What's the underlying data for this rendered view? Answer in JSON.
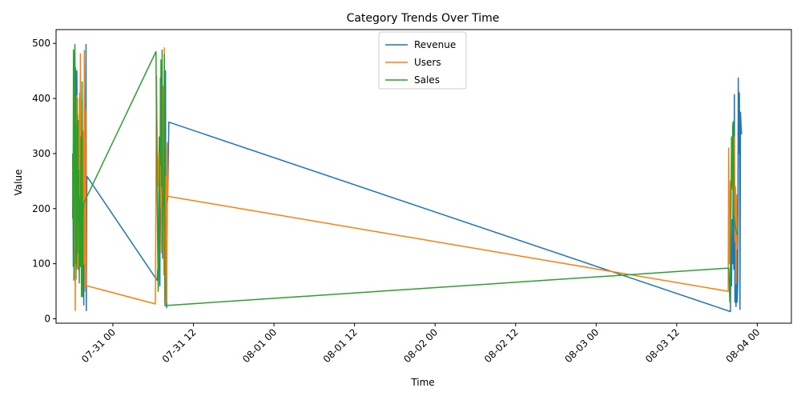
{
  "chart_data": {
    "type": "line",
    "title": "Category Trends Over Time",
    "xlabel": "Time",
    "ylabel": "Value",
    "ylim": [
      -8,
      525
    ],
    "xlim": [
      "2024-07-30 15:32",
      "2024-08-04 05:05"
    ],
    "grid": false,
    "legend_position": "top-center",
    "x_ticks": [
      {
        "t": "2024-07-31 00:00",
        "label": "07-31 00"
      },
      {
        "t": "2024-07-31 12:00",
        "label": "07-31 12"
      },
      {
        "t": "2024-08-01 00:00",
        "label": "08-01 00"
      },
      {
        "t": "2024-08-01 12:00",
        "label": "08-01 12"
      },
      {
        "t": "2024-08-02 00:00",
        "label": "08-02 00"
      },
      {
        "t": "2024-08-02 12:00",
        "label": "08-02 12"
      },
      {
        "t": "2024-08-03 00:00",
        "label": "08-03 00"
      },
      {
        "t": "2024-08-03 12:00",
        "label": "08-03 12"
      },
      {
        "t": "2024-08-04 00:00",
        "label": "08-04 00"
      }
    ],
    "y_ticks": [
      0,
      100,
      200,
      300,
      400,
      500
    ],
    "series": [
      {
        "name": "Revenue",
        "color": "#1f77b4",
        "points": [
          [
            "2024-07-30 18:00",
            182
          ],
          [
            "2024-07-30 18:03",
            272
          ],
          [
            "2024-07-30 18:06",
            95
          ],
          [
            "2024-07-30 18:09",
            350
          ],
          [
            "2024-07-30 18:12",
            466
          ],
          [
            "2024-07-30 18:15",
            110
          ],
          [
            "2024-07-30 18:18",
            460
          ],
          [
            "2024-07-30 18:21",
            95
          ],
          [
            "2024-07-30 18:24",
            180
          ],
          [
            "2024-07-30 18:27",
            455
          ],
          [
            "2024-07-30 18:30",
            72
          ],
          [
            "2024-07-30 18:34",
            300
          ],
          [
            "2024-07-30 18:38",
            450
          ],
          [
            "2024-07-30 18:42",
            120
          ],
          [
            "2024-07-30 18:46",
            330
          ],
          [
            "2024-07-30 18:50",
            90
          ],
          [
            "2024-07-30 18:55",
            280
          ],
          [
            "2024-07-30 19:00",
            120
          ],
          [
            "2024-07-30 19:05",
            410
          ],
          [
            "2024-07-30 19:10",
            95
          ],
          [
            "2024-07-30 19:15",
            330
          ],
          [
            "2024-07-30 19:20",
            150
          ],
          [
            "2024-07-30 19:25",
            400
          ],
          [
            "2024-07-30 19:30",
            60
          ],
          [
            "2024-07-30 19:35",
            330
          ],
          [
            "2024-07-30 19:40",
            25
          ],
          [
            "2024-07-30 19:45",
            380
          ],
          [
            "2024-07-30 19:50",
            80
          ],
          [
            "2024-07-30 19:55",
            260
          ],
          [
            "2024-07-30 20:00",
            498
          ],
          [
            "2024-07-30 20:03",
            15
          ],
          [
            "2024-07-30 20:06",
            250
          ],
          [
            "2024-07-30 20:10",
            258
          ],
          [
            "2024-07-31 06:35",
            70
          ],
          [
            "2024-07-31 06:45",
            100
          ],
          [
            "2024-07-31 06:55",
            330
          ],
          [
            "2024-07-31 07:00",
            60
          ],
          [
            "2024-07-31 07:05",
            437
          ],
          [
            "2024-07-31 07:10",
            240
          ],
          [
            "2024-07-31 07:15",
            120
          ],
          [
            "2024-07-31 07:20",
            160
          ],
          [
            "2024-07-31 07:25",
            110
          ],
          [
            "2024-07-31 07:30",
            270
          ],
          [
            "2024-07-31 07:35",
            200
          ],
          [
            "2024-07-31 07:40",
            310
          ],
          [
            "2024-07-31 07:45",
            130
          ],
          [
            "2024-07-31 07:50",
            450
          ],
          [
            "2024-07-31 07:55",
            40
          ],
          [
            "2024-07-31 08:00",
            20
          ],
          [
            "2024-07-31 08:05",
            210
          ],
          [
            "2024-07-31 08:10",
            220
          ],
          [
            "2024-07-31 08:20",
            357
          ],
          [
            "2024-08-03 20:00",
            13
          ],
          [
            "2024-08-03 20:05",
            150
          ],
          [
            "2024-08-03 20:10",
            60
          ],
          [
            "2024-08-03 20:15",
            180
          ],
          [
            "2024-08-03 20:20",
            100
          ],
          [
            "2024-08-03 20:25",
            285
          ],
          [
            "2024-08-03 20:30",
            90
          ],
          [
            "2024-08-03 20:35",
            407
          ],
          [
            "2024-08-03 20:40",
            30
          ],
          [
            "2024-08-03 20:45",
            60
          ],
          [
            "2024-08-03 20:50",
            22
          ],
          [
            "2024-08-03 20:55",
            125
          ],
          [
            "2024-08-03 21:00",
            30
          ],
          [
            "2024-08-03 21:05",
            60
          ],
          [
            "2024-08-03 21:10",
            437
          ],
          [
            "2024-08-03 21:15",
            300
          ],
          [
            "2024-08-03 21:20",
            410
          ],
          [
            "2024-08-03 21:25",
            17
          ],
          [
            "2024-08-03 21:30",
            375
          ],
          [
            "2024-08-03 21:35",
            350
          ],
          [
            "2024-08-03 21:40",
            335
          ]
        ]
      },
      {
        "name": "Users",
        "color": "#ff7f0e",
        "points": [
          [
            "2024-07-30 18:00",
            260
          ],
          [
            "2024-07-30 18:04",
            290
          ],
          [
            "2024-07-30 18:08",
            210
          ],
          [
            "2024-07-30 18:12",
            300
          ],
          [
            "2024-07-30 18:16",
            130
          ],
          [
            "2024-07-30 18:20",
            320
          ],
          [
            "2024-07-30 18:24",
            15
          ],
          [
            "2024-07-30 18:28",
            250
          ],
          [
            "2024-07-30 18:32",
            100
          ],
          [
            "2024-07-30 18:36",
            405
          ],
          [
            "2024-07-30 18:40",
            260
          ],
          [
            "2024-07-30 18:44",
            370
          ],
          [
            "2024-07-30 18:48",
            95
          ],
          [
            "2024-07-30 18:52",
            360
          ],
          [
            "2024-07-30 18:56",
            90
          ],
          [
            "2024-07-30 19:00",
            400
          ],
          [
            "2024-07-30 19:05",
            160
          ],
          [
            "2024-07-30 19:10",
            481
          ],
          [
            "2024-07-30 19:15",
            120
          ],
          [
            "2024-07-30 19:20",
            330
          ],
          [
            "2024-07-30 19:25",
            60
          ],
          [
            "2024-07-30 19:30",
            190
          ],
          [
            "2024-07-30 19:35",
            340
          ],
          [
            "2024-07-30 19:40",
            100
          ],
          [
            "2024-07-30 19:45",
            487
          ],
          [
            "2024-07-30 19:50",
            50
          ],
          [
            "2024-07-30 19:55",
            380
          ],
          [
            "2024-07-30 20:00",
            60
          ],
          [
            "2024-07-30 20:05",
            60
          ],
          [
            "2024-07-31 06:20",
            27
          ],
          [
            "2024-07-31 06:30",
            440
          ],
          [
            "2024-07-31 06:40",
            240
          ],
          [
            "2024-07-31 06:50",
            300
          ],
          [
            "2024-07-31 07:00",
            200
          ],
          [
            "2024-07-31 07:10",
            340
          ],
          [
            "2024-07-31 07:15",
            120
          ],
          [
            "2024-07-31 07:20",
            270
          ],
          [
            "2024-07-31 07:25",
            240
          ],
          [
            "2024-07-31 07:30",
            422
          ],
          [
            "2024-07-31 07:35",
            80
          ],
          [
            "2024-07-31 07:40",
            492
          ],
          [
            "2024-07-31 07:45",
            30
          ],
          [
            "2024-07-31 07:50",
            200
          ],
          [
            "2024-07-31 07:55",
            260
          ],
          [
            "2024-07-31 08:00",
            30
          ],
          [
            "2024-07-31 08:05",
            320
          ],
          [
            "2024-07-31 08:10",
            222
          ],
          [
            "2024-07-31 08:20",
            222
          ],
          [
            "2024-08-03 19:40",
            50
          ],
          [
            "2024-08-03 19:45",
            310
          ],
          [
            "2024-08-03 19:50",
            100
          ],
          [
            "2024-08-03 19:55",
            190
          ],
          [
            "2024-08-03 20:00",
            250
          ],
          [
            "2024-08-03 20:05",
            230
          ],
          [
            "2024-08-03 20:10",
            245
          ],
          [
            "2024-08-03 20:15",
            235
          ],
          [
            "2024-08-03 20:20",
            240
          ],
          [
            "2024-08-03 20:25",
            310
          ],
          [
            "2024-08-03 20:30",
            190
          ],
          [
            "2024-08-03 20:35",
            330
          ],
          [
            "2024-08-03 20:40",
            140
          ],
          [
            "2024-08-03 20:45",
            240
          ],
          [
            "2024-08-03 20:50",
            65
          ],
          [
            "2024-08-03 20:55",
            225
          ],
          [
            "2024-08-03 21:00",
            140
          ]
        ]
      },
      {
        "name": "Sales",
        "color": "#2ca02c",
        "points": [
          [
            "2024-07-30 18:00",
            300
          ],
          [
            "2024-07-30 18:04",
            180
          ],
          [
            "2024-07-30 18:08",
            488
          ],
          [
            "2024-07-30 18:12",
            70
          ],
          [
            "2024-07-30 18:16",
            400
          ],
          [
            "2024-07-30 18:20",
            498
          ],
          [
            "2024-07-30 18:24",
            330
          ],
          [
            "2024-07-30 18:28",
            100
          ],
          [
            "2024-07-30 18:32",
            350
          ],
          [
            "2024-07-30 18:36",
            90
          ],
          [
            "2024-07-30 18:40",
            400
          ],
          [
            "2024-07-30 18:44",
            120
          ],
          [
            "2024-07-30 18:48",
            360
          ],
          [
            "2024-07-30 18:52",
            180
          ],
          [
            "2024-07-30 18:56",
            270
          ],
          [
            "2024-07-30 19:00",
            65
          ],
          [
            "2024-07-30 19:05",
            220
          ],
          [
            "2024-07-30 19:10",
            95
          ],
          [
            "2024-07-30 19:15",
            330
          ],
          [
            "2024-07-30 19:20",
            40
          ],
          [
            "2024-07-30 19:25",
            430
          ],
          [
            "2024-07-30 19:30",
            40
          ],
          [
            "2024-07-30 19:35",
            200
          ],
          [
            "2024-07-30 19:40",
            210
          ],
          [
            "2024-07-31 06:25",
            485
          ],
          [
            "2024-07-31 06:35",
            240
          ],
          [
            "2024-07-31 06:45",
            50
          ],
          [
            "2024-07-31 06:55",
            120
          ],
          [
            "2024-07-31 07:00",
            330
          ],
          [
            "2024-07-31 07:05",
            280
          ],
          [
            "2024-07-31 07:10",
            470
          ],
          [
            "2024-07-31 07:15",
            240
          ],
          [
            "2024-07-31 07:20",
            488
          ],
          [
            "2024-07-31 07:25",
            130
          ],
          [
            "2024-07-31 07:30",
            200
          ],
          [
            "2024-07-31 07:35",
            210
          ],
          [
            "2024-07-31 07:40",
            480
          ],
          [
            "2024-07-31 07:45",
            24
          ],
          [
            "2024-08-03 19:45",
            92
          ],
          [
            "2024-08-03 19:50",
            60
          ],
          [
            "2024-08-03 19:55",
            30
          ],
          [
            "2024-08-03 20:00",
            100
          ],
          [
            "2024-08-03 20:05",
            200
          ],
          [
            "2024-08-03 20:10",
            330
          ],
          [
            "2024-08-03 20:15",
            240
          ],
          [
            "2024-08-03 20:20",
            350
          ],
          [
            "2024-08-03 20:25",
            358
          ],
          [
            "2024-08-03 20:30",
            190
          ],
          [
            "2024-08-03 20:40",
            170
          ],
          [
            "2024-08-03 21:00",
            152
          ]
        ]
      }
    ]
  }
}
